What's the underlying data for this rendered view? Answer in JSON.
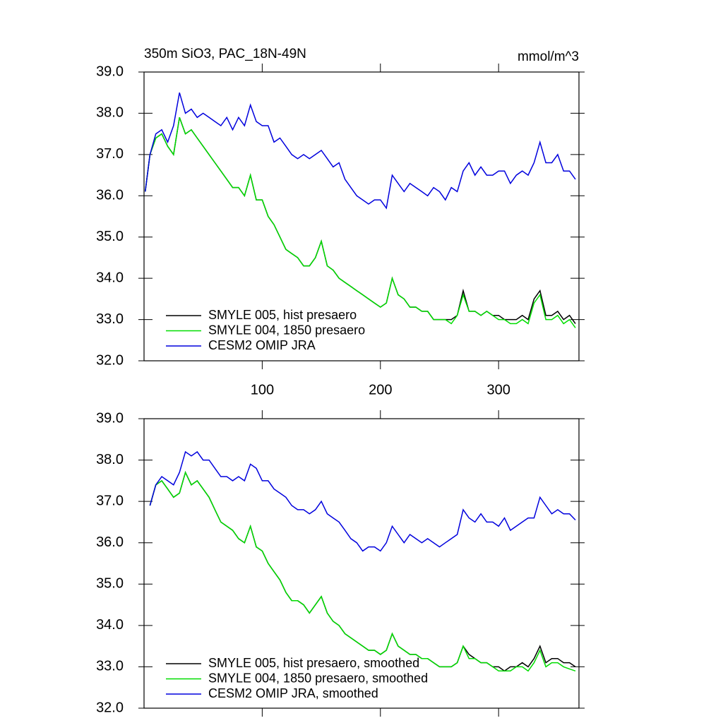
{
  "chart_data": [
    {
      "type": "line",
      "title": "350m SiO3, PAC_18N-49N",
      "units": "mmol/m^3",
      "xlim": [
        0,
        368
      ],
      "ylim": [
        32.0,
        39.0
      ],
      "xticks": [
        100,
        200,
        300
      ],
      "yticks": [
        {
          "value": 32,
          "label": "32.0"
        },
        {
          "value": 33,
          "label": "33.0"
        },
        {
          "value": 34,
          "label": "34.0"
        },
        {
          "value": 35,
          "label": "35.0"
        },
        {
          "value": 36,
          "label": "36.0"
        },
        {
          "value": 37,
          "label": "37.0"
        },
        {
          "value": 38,
          "label": "38.0"
        },
        {
          "value": 39,
          "label": "39.0"
        }
      ],
      "legend": "lower-left",
      "x": [
        1,
        5,
        10,
        15,
        20,
        25,
        30,
        35,
        40,
        45,
        50,
        55,
        60,
        65,
        70,
        75,
        80,
        85,
        90,
        95,
        100,
        105,
        110,
        115,
        120,
        125,
        130,
        135,
        140,
        145,
        150,
        155,
        160,
        165,
        170,
        175,
        180,
        185,
        190,
        195,
        200,
        205,
        210,
        215,
        220,
        225,
        230,
        235,
        240,
        245,
        250,
        255,
        260,
        265,
        270,
        275,
        280,
        285,
        290,
        295,
        300,
        305,
        310,
        315,
        320,
        325,
        330,
        335,
        340,
        345,
        350,
        355,
        360,
        365
      ],
      "series": [
        {
          "name": "SMYLE 005, hist presaero",
          "color": "#000000",
          "values": [
            36.1,
            37.0,
            37.4,
            37.5,
            37.2,
            37.0,
            37.9,
            37.5,
            37.6,
            37.4,
            37.2,
            37.0,
            36.8,
            36.6,
            36.4,
            36.2,
            36.2,
            36.0,
            36.5,
            35.9,
            35.9,
            35.5,
            35.3,
            35.0,
            34.7,
            34.6,
            34.5,
            34.3,
            34.3,
            34.5,
            34.9,
            34.3,
            34.2,
            34.0,
            33.9,
            33.8,
            33.7,
            33.6,
            33.5,
            33.4,
            33.3,
            33.4,
            34.0,
            33.6,
            33.5,
            33.3,
            33.3,
            33.2,
            33.2,
            33.0,
            33.0,
            33.0,
            33.0,
            33.1,
            33.7,
            33.2,
            33.2,
            33.1,
            33.2,
            33.1,
            33.1,
            33.0,
            33.0,
            33.0,
            33.1,
            33.0,
            33.5,
            33.7,
            33.1,
            33.1,
            33.2,
            33.0,
            33.1,
            32.9
          ]
        },
        {
          "name": "SMYLE 004, 1850 presaero",
          "color": "#00dd00",
          "values": [
            36.1,
            37.0,
            37.4,
            37.5,
            37.2,
            37.0,
            37.9,
            37.5,
            37.6,
            37.4,
            37.2,
            37.0,
            36.8,
            36.6,
            36.4,
            36.2,
            36.2,
            36.0,
            36.5,
            35.9,
            35.9,
            35.5,
            35.3,
            35.0,
            34.7,
            34.6,
            34.5,
            34.3,
            34.3,
            34.5,
            34.9,
            34.3,
            34.2,
            34.0,
            33.9,
            33.8,
            33.7,
            33.6,
            33.5,
            33.4,
            33.3,
            33.4,
            34.0,
            33.6,
            33.5,
            33.3,
            33.3,
            33.2,
            33.2,
            33.0,
            33.0,
            33.0,
            32.9,
            33.1,
            33.6,
            33.2,
            33.2,
            33.1,
            33.2,
            33.1,
            33.0,
            33.0,
            32.9,
            32.9,
            33.0,
            32.9,
            33.4,
            33.6,
            33.0,
            33.0,
            33.1,
            32.9,
            33.0,
            32.8
          ]
        },
        {
          "name": "CESM2 OMIP JRA",
          "color": "#0000dd",
          "values": [
            36.1,
            37.0,
            37.5,
            37.6,
            37.3,
            37.7,
            38.5,
            38.0,
            38.1,
            37.9,
            38.0,
            37.9,
            37.8,
            37.7,
            37.9,
            37.6,
            37.9,
            37.7,
            38.2,
            37.8,
            37.7,
            37.7,
            37.3,
            37.4,
            37.2,
            37.0,
            36.9,
            37.0,
            36.9,
            37.0,
            37.1,
            36.9,
            36.7,
            36.8,
            36.4,
            36.2,
            36.0,
            35.9,
            35.8,
            35.9,
            35.9,
            35.7,
            36.5,
            36.3,
            36.1,
            36.3,
            36.2,
            36.1,
            36.0,
            36.2,
            36.1,
            35.9,
            36.2,
            36.1,
            36.6,
            36.8,
            36.5,
            36.7,
            36.5,
            36.5,
            36.6,
            36.6,
            36.3,
            36.5,
            36.6,
            36.5,
            36.8,
            37.3,
            36.8,
            36.8,
            37.0,
            36.6,
            36.6,
            36.4
          ]
        }
      ]
    },
    {
      "type": "line",
      "xlim": [
        0,
        368
      ],
      "ylim": [
        32.0,
        39.0
      ],
      "xticks": [
        100,
        200,
        300
      ],
      "yticks": [
        {
          "value": 32,
          "label": "32.0"
        },
        {
          "value": 33,
          "label": "33.0"
        },
        {
          "value": 34,
          "label": "34.0"
        },
        {
          "value": 35,
          "label": "35.0"
        },
        {
          "value": 36,
          "label": "36.0"
        },
        {
          "value": 37,
          "label": "37.0"
        },
        {
          "value": 38,
          "label": "38.0"
        },
        {
          "value": 39,
          "label": "39.0"
        }
      ],
      "legend": "lower-left",
      "x": [
        5,
        10,
        15,
        20,
        25,
        30,
        35,
        40,
        45,
        50,
        55,
        60,
        65,
        70,
        75,
        80,
        85,
        90,
        95,
        100,
        105,
        110,
        115,
        120,
        125,
        130,
        135,
        140,
        145,
        150,
        155,
        160,
        165,
        170,
        175,
        180,
        185,
        190,
        195,
        200,
        205,
        210,
        215,
        220,
        225,
        230,
        235,
        240,
        245,
        250,
        255,
        260,
        265,
        270,
        275,
        280,
        285,
        290,
        295,
        300,
        305,
        310,
        315,
        320,
        325,
        330,
        335,
        340,
        345,
        350,
        355,
        360,
        365
      ],
      "series": [
        {
          "name": "SMYLE 005, hist presaero, smoothed",
          "color": "#000000",
          "values": [
            36.9,
            37.4,
            37.5,
            37.3,
            37.1,
            37.2,
            37.7,
            37.4,
            37.5,
            37.3,
            37.1,
            36.8,
            36.5,
            36.4,
            36.3,
            36.1,
            36.0,
            36.4,
            35.9,
            35.8,
            35.5,
            35.3,
            35.1,
            34.8,
            34.6,
            34.6,
            34.5,
            34.3,
            34.5,
            34.7,
            34.3,
            34.1,
            34.0,
            33.8,
            33.7,
            33.6,
            33.5,
            33.4,
            33.4,
            33.3,
            33.4,
            33.8,
            33.5,
            33.4,
            33.3,
            33.3,
            33.2,
            33.2,
            33.1,
            33.0,
            33.0,
            33.0,
            33.1,
            33.5,
            33.3,
            33.2,
            33.1,
            33.1,
            33.0,
            33.0,
            32.9,
            33.0,
            33.0,
            33.1,
            33.0,
            33.2,
            33.5,
            33.1,
            33.2,
            33.2,
            33.1,
            33.1,
            33.0
          ]
        },
        {
          "name": "SMYLE 004, 1850 presaero, smoothed",
          "color": "#00dd00",
          "values": [
            36.9,
            37.4,
            37.5,
            37.3,
            37.1,
            37.2,
            37.7,
            37.4,
            37.5,
            37.3,
            37.1,
            36.8,
            36.5,
            36.4,
            36.3,
            36.1,
            36.0,
            36.4,
            35.9,
            35.8,
            35.5,
            35.3,
            35.1,
            34.8,
            34.6,
            34.6,
            34.5,
            34.3,
            34.5,
            34.7,
            34.3,
            34.1,
            34.0,
            33.8,
            33.7,
            33.6,
            33.5,
            33.4,
            33.4,
            33.3,
            33.4,
            33.8,
            33.5,
            33.4,
            33.3,
            33.3,
            33.2,
            33.2,
            33.1,
            33.0,
            33.0,
            33.0,
            33.1,
            33.5,
            33.2,
            33.2,
            33.1,
            33.1,
            33.0,
            32.9,
            32.9,
            32.9,
            33.0,
            33.0,
            32.9,
            33.1,
            33.4,
            33.0,
            33.1,
            33.1,
            33.0,
            32.95,
            32.9
          ]
        },
        {
          "name": "CESM2 OMIP JRA, smoothed",
          "color": "#0000dd",
          "values": [
            36.9,
            37.4,
            37.6,
            37.5,
            37.4,
            37.7,
            38.2,
            38.1,
            38.2,
            38.0,
            38.0,
            37.8,
            37.6,
            37.6,
            37.5,
            37.6,
            37.5,
            37.9,
            37.8,
            37.5,
            37.5,
            37.3,
            37.2,
            37.1,
            36.9,
            36.8,
            36.8,
            36.7,
            36.8,
            37.0,
            36.7,
            36.6,
            36.5,
            36.3,
            36.1,
            36.0,
            35.8,
            35.9,
            35.9,
            35.8,
            36.0,
            36.4,
            36.2,
            36.0,
            36.2,
            36.1,
            36.0,
            36.1,
            36.0,
            35.9,
            36.0,
            36.1,
            36.2,
            36.8,
            36.6,
            36.5,
            36.7,
            36.5,
            36.5,
            36.4,
            36.6,
            36.3,
            36.4,
            36.5,
            36.6,
            36.6,
            37.1,
            36.9,
            36.7,
            36.8,
            36.7,
            36.7,
            36.55
          ]
        }
      ]
    }
  ]
}
